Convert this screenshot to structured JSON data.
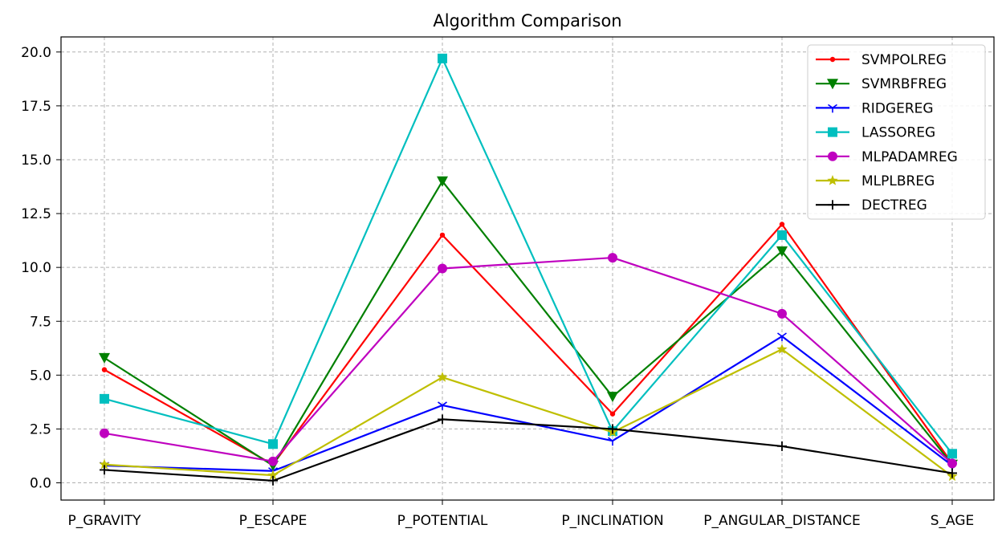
{
  "chart_data": {
    "type": "line",
    "title": "Algorithm Comparison",
    "xlabel": "",
    "ylabel": "",
    "categories": [
      "P_GRAVITY",
      "P_ESCAPE",
      "P_POTENTIAL",
      "P_INCLINATION",
      "P_ANGULAR_DISTANCE",
      "S_AGE"
    ],
    "ylim": [
      -0.8,
      20.7
    ],
    "yticks": [
      0.0,
      2.5,
      5.0,
      7.5,
      10.0,
      12.5,
      15.0,
      17.5,
      20.0
    ],
    "ytick_labels": [
      "0.0",
      "2.5",
      "5.0",
      "7.5",
      "10.0",
      "12.5",
      "15.0",
      "17.5",
      "20.0"
    ],
    "grid": true,
    "legend_position": "top-right",
    "series": [
      {
        "name": "SVMPOLREG",
        "color": "#ff0000",
        "marker": "point",
        "values": [
          5.25,
          0.85,
          11.5,
          3.2,
          12.0,
          0.9
        ]
      },
      {
        "name": "SVMRBFREG",
        "color": "#008000",
        "marker": "triangle-down",
        "values": [
          5.8,
          0.8,
          14.0,
          4.0,
          10.75,
          0.85
        ]
      },
      {
        "name": "RIDGEREG",
        "color": "#0000ff",
        "marker": "tri-down",
        "values": [
          0.8,
          0.55,
          3.6,
          1.95,
          6.8,
          0.8
        ]
      },
      {
        "name": "LASSOREG",
        "color": "#00bfbf",
        "marker": "square",
        "values": [
          3.9,
          1.8,
          19.7,
          2.4,
          11.5,
          1.35
        ]
      },
      {
        "name": "MLPADAMREG",
        "color": "#bf00bf",
        "marker": "circle",
        "values": [
          2.3,
          1.0,
          9.95,
          10.45,
          7.85,
          0.9
        ]
      },
      {
        "name": "MLPLBREG",
        "color": "#bfbf00",
        "marker": "star",
        "values": [
          0.85,
          0.35,
          4.9,
          2.35,
          6.2,
          0.3
        ]
      },
      {
        "name": "DECTREG",
        "color": "#000000",
        "marker": "plus",
        "values": [
          0.6,
          0.1,
          2.95,
          2.5,
          1.7,
          0.45
        ]
      }
    ]
  }
}
